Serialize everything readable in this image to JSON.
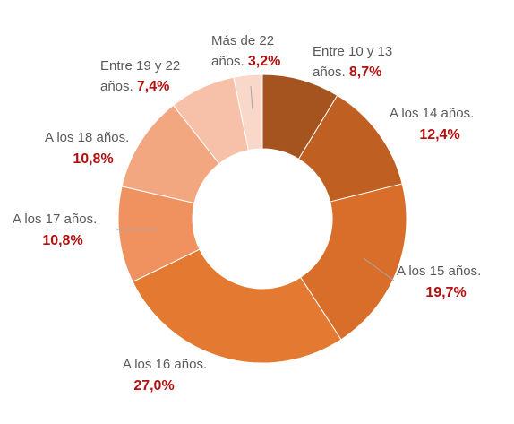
{
  "chart_data": {
    "type": "pie",
    "variant": "donut",
    "categories": [
      "Entre 10 y 13 años.",
      "A los 14 años.",
      "A los 15 años.",
      "A los 16 años.",
      "A los 17 años.",
      "A los 18 años.",
      "Entre 19 y 22 años.",
      "Más de 22 años."
    ],
    "values": [
      8.7,
      12.4,
      19.7,
      27.0,
      10.8,
      10.8,
      7.4,
      3.2
    ],
    "value_labels": [
      "8,7%",
      "12,4%",
      "19,7%",
      "27,0%",
      "10,8%",
      "10,8%",
      "7,4%",
      "3,2%"
    ],
    "colors": [
      "#a5541f",
      "#c05f22",
      "#d86e2a",
      "#e47a32",
      "#ef925f",
      "#f2a781",
      "#f6c1a8",
      "#f9d8c9"
    ],
    "title": "",
    "legend": "none",
    "label_lines": [
      {
        "category": "Entre 10 y 13",
        "suffix": "años.",
        "value": "8,7%"
      },
      {
        "category": "A los 14 años.",
        "suffix": "",
        "value": "12,4%"
      },
      {
        "category": "A los 15 años.",
        "suffix": "",
        "value": "19,7%"
      },
      {
        "category": "A los 16 años.",
        "suffix": "",
        "value": "27,0%"
      },
      {
        "category": "A los 17 años.",
        "suffix": "",
        "value": "10,8%"
      },
      {
        "category": "A los 18 años.",
        "suffix": "",
        "value": "10,8%"
      },
      {
        "category": "Entre 19 y 22",
        "suffix": "años.",
        "value": "7,4%"
      },
      {
        "category": "Más de 22",
        "suffix": "años.",
        "value": "3,2%"
      }
    ]
  }
}
